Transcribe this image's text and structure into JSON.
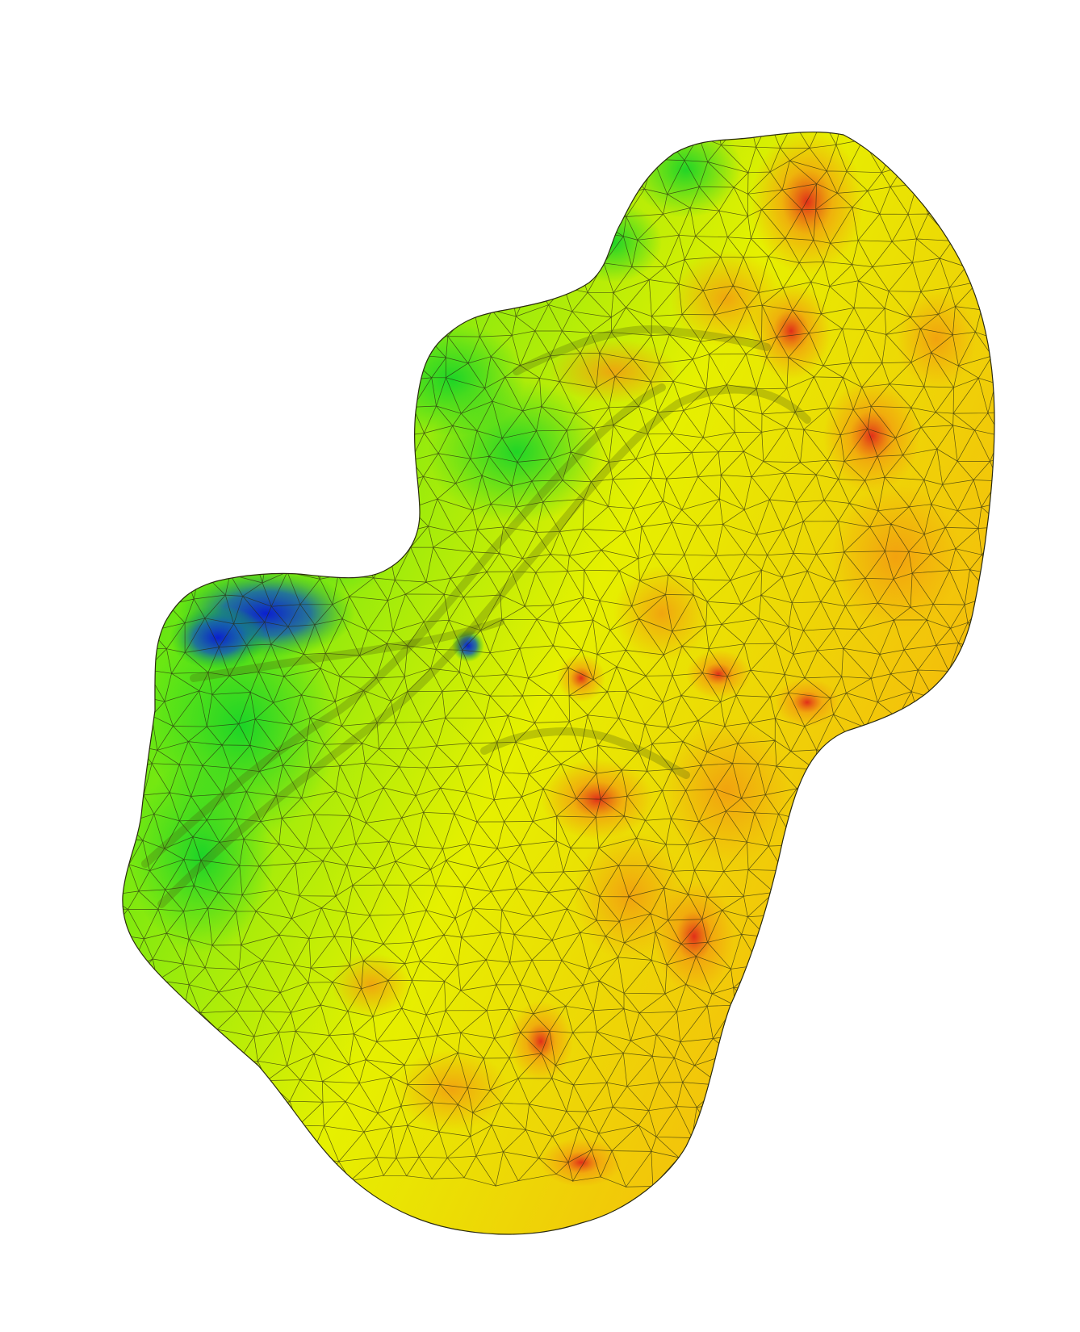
{
  "viewport": {
    "background_color": "#ffffff"
  },
  "surface": {
    "description_colors": {
      "low": "#0a1fd0",
      "low_mid": "#0fd41a",
      "mid": "#3ee60f",
      "mid_high": "#f2f200",
      "high": "#f29a10",
      "peak": "#e8321a"
    },
    "wireframe_color": "#2b2b10",
    "colormap_stops": [
      {
        "t": 0.0,
        "color": "#0a1fd0"
      },
      {
        "t": 0.22,
        "color": "#10c21c"
      },
      {
        "t": 0.42,
        "color": "#3ee60f"
      },
      {
        "t": 0.62,
        "color": "#eef200"
      },
      {
        "t": 0.82,
        "color": "#f29a10"
      },
      {
        "t": 1.0,
        "color": "#e0261a"
      }
    ]
  }
}
